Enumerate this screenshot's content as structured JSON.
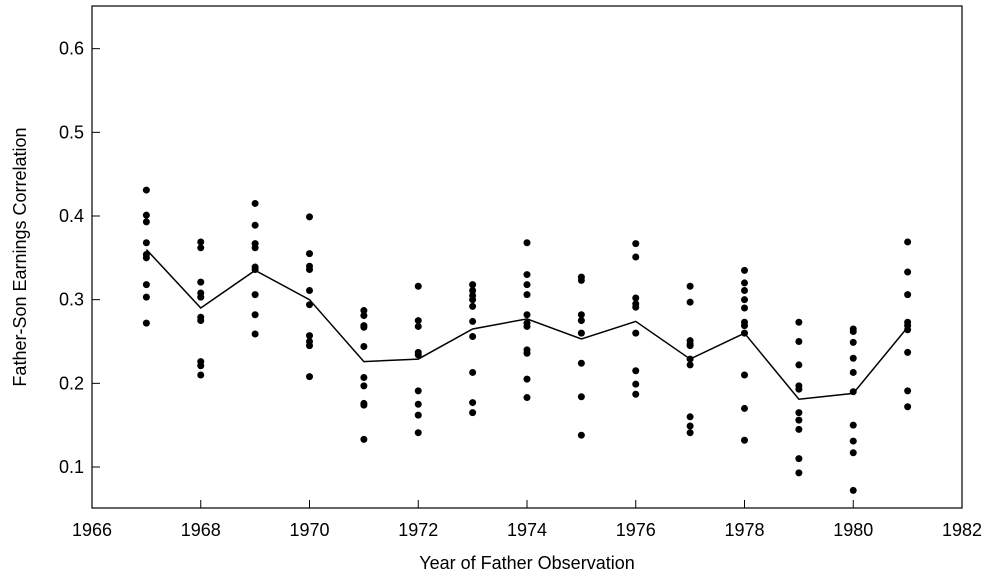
{
  "chart_data": {
    "type": "scatter",
    "xlabel": "Year of Father Observation",
    "ylabel": "Father-Son Earnings Correlation",
    "x": [
      1967,
      1968,
      1969,
      1970,
      1971,
      1972,
      1973,
      1974,
      1975,
      1976,
      1977,
      1978,
      1979,
      1980,
      1981
    ],
    "series": [
      {
        "type": "scatter",
        "color": "#000000",
        "values": [
          [
            0.431,
            0.401,
            0.393,
            0.368,
            0.354,
            0.35,
            0.318,
            0.303,
            0.272
          ],
          [
            0.369,
            0.362,
            0.321,
            0.308,
            0.303,
            0.279,
            0.275,
            0.226,
            0.221,
            0.21
          ],
          [
            0.415,
            0.389,
            0.367,
            0.362,
            0.339,
            0.336,
            0.306,
            0.282,
            0.259
          ],
          [
            0.399,
            0.355,
            0.34,
            0.336,
            0.311,
            0.294,
            0.257,
            0.25,
            0.245,
            0.208
          ],
          [
            0.287,
            0.281,
            0.269,
            0.267,
            0.244,
            0.207,
            0.197,
            0.176,
            0.174,
            0.133
          ],
          [
            0.316,
            0.275,
            0.268,
            0.237,
            0.234,
            0.191,
            0.175,
            0.162,
            0.141
          ],
          [
            0.318,
            0.311,
            0.305,
            0.3,
            0.292,
            0.274,
            0.256,
            0.213,
            0.177,
            0.165
          ],
          [
            0.368,
            0.33,
            0.318,
            0.306,
            0.282,
            0.272,
            0.268,
            0.24,
            0.236,
            0.205,
            0.183
          ],
          [
            0.327,
            0.323,
            0.282,
            0.275,
            0.26,
            0.224,
            0.184,
            0.138
          ],
          [
            0.367,
            0.351,
            0.302,
            0.295,
            0.291,
            0.26,
            0.215,
            0.199,
            0.187
          ],
          [
            0.316,
            0.297,
            0.251,
            0.247,
            0.245,
            0.229,
            0.222,
            0.16,
            0.149,
            0.141
          ],
          [
            0.335,
            0.32,
            0.311,
            0.3,
            0.29,
            0.273,
            0.269,
            0.26,
            0.21,
            0.17,
            0.132
          ],
          [
            0.273,
            0.25,
            0.222,
            0.197,
            0.193,
            0.165,
            0.156,
            0.145,
            0.11,
            0.093
          ],
          [
            0.265,
            0.262,
            0.249,
            0.23,
            0.213,
            0.19,
            0.15,
            0.131,
            0.117,
            0.072
          ],
          [
            0.369,
            0.333,
            0.306,
            0.273,
            0.269,
            0.264,
            0.237,
            0.191,
            0.172
          ]
        ]
      },
      {
        "type": "line",
        "color": "#000000",
        "values": [
          0.36,
          0.29,
          0.335,
          0.3,
          0.226,
          0.229,
          0.265,
          0.277,
          0.253,
          0.274,
          0.229,
          0.26,
          0.181,
          0.188,
          0.267
        ]
      }
    ],
    "xlim": [
      1966,
      1982
    ],
    "xticks": [
      1966,
      1968,
      1970,
      1972,
      1974,
      1976,
      1978,
      1980,
      1982
    ],
    "ylim": [
      0.051,
      0.651
    ],
    "yticks": [
      0.1,
      0.2,
      0.3,
      0.4,
      0.5,
      0.6
    ],
    "grid": false
  }
}
